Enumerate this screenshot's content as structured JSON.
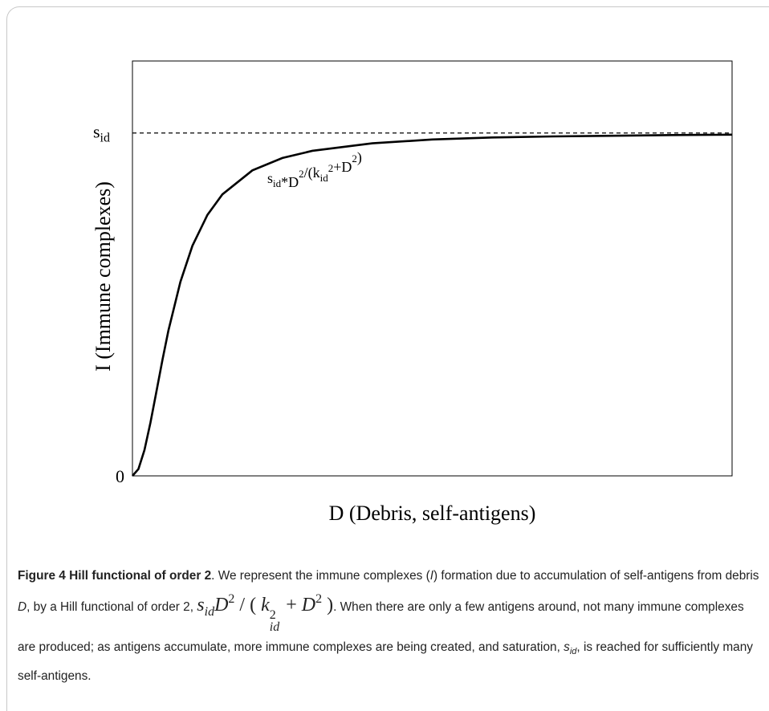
{
  "chart_data": {
    "type": "line",
    "x_label": "D (Debris, self-antigens)",
    "y_label": "I (Immune complexes)",
    "x": [
      0,
      0.1,
      0.2,
      0.3,
      0.4,
      0.5,
      0.6,
      0.8,
      1,
      1.25,
      1.5,
      2,
      2.5,
      3,
      4,
      5,
      6,
      7,
      8,
      9,
      10
    ],
    "values": [
      0,
      0.02,
      0.075,
      0.155,
      0.246,
      0.338,
      0.424,
      0.566,
      0.671,
      0.761,
      0.821,
      0.891,
      0.927,
      0.948,
      0.97,
      0.981,
      0.987,
      0.99,
      0.992,
      0.994,
      0.995
    ],
    "color": "#000000",
    "xlim": [
      0,
      10
    ],
    "ylim": [
      0,
      1.21
    ],
    "yticks": [
      0,
      {
        "value": 1,
        "label": "s",
        "sub": "id",
        "line": "dashed"
      }
    ],
    "annotation": [
      {
        "text": "s"
      },
      {
        "text": "id",
        "style": "sub"
      },
      {
        "text": "*D"
      },
      {
        "text": "2",
        "style": "sup"
      },
      {
        "text": "/(k"
      },
      {
        "text": "id",
        "style": "sub"
      },
      {
        "text": "2",
        "style": "sup"
      },
      {
        "text": "+D"
      },
      {
        "text": "2",
        "style": "sup"
      },
      {
        "text": ")"
      }
    ]
  },
  "caption": {
    "segments": [
      {
        "text": "Figure 4 Hill functional of order 2",
        "style": "bold"
      },
      {
        "text": ". We represent the immune complexes ("
      },
      {
        "text": "I",
        "style": "italic"
      },
      {
        "text": ") formation due to accumulation of self-antigens from debris "
      },
      {
        "text": "D",
        "style": "italic"
      },
      {
        "text": ", by a Hill functional of order 2, "
      },
      {
        "text": "s",
        "style": "math"
      },
      {
        "text": "id",
        "style": "math-sub"
      },
      {
        "text": "D",
        "style": "math"
      },
      {
        "text": "2",
        "style": "math-sup"
      },
      {
        "text": " / ( ",
        "style": "math-up"
      },
      {
        "text": "k",
        "style": "math"
      },
      {
        "sup": "2",
        "sub": "id",
        "style": "math-stack"
      },
      {
        "text": " + ",
        "style": "math-up"
      },
      {
        "text": "D",
        "style": "math"
      },
      {
        "text": "2",
        "style": "math-sup"
      },
      {
        "text": " )",
        "style": "math-up"
      },
      {
        "text": ". When there are only a few antigens around, not many immune complexes are produced; as antigens accumulate, more immune complexes are being created, and saturation, "
      },
      {
        "text": "s",
        "style": "italic"
      },
      {
        "text": "id",
        "style": "isub"
      },
      {
        "text": ", is reached for sufficiently many self-antigens."
      }
    ]
  }
}
